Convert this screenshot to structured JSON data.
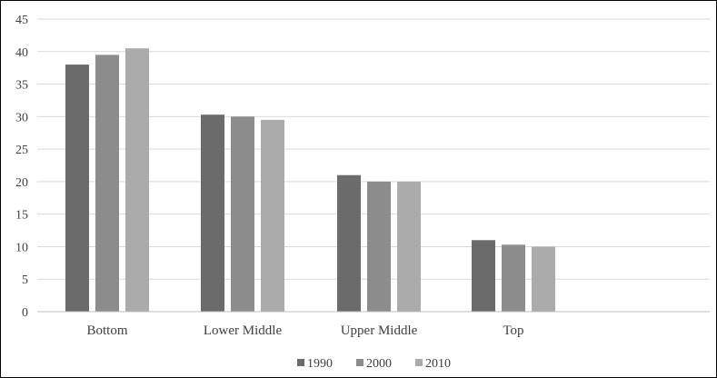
{
  "chart_data": {
    "type": "bar",
    "title": "",
    "xlabel": "",
    "ylabel": "",
    "categories": [
      "Bottom",
      "Lower Middle",
      "Upper Middle",
      "Top"
    ],
    "series": [
      {
        "name": "1990",
        "color": "#6b6b6b",
        "values": [
          38.0,
          30.3,
          21.0,
          11.0
        ]
      },
      {
        "name": "2000",
        "color": "#8c8c8c",
        "values": [
          39.5,
          30.0,
          20.0,
          10.3
        ]
      },
      {
        "name": "2010",
        "color": "#ababab",
        "values": [
          40.5,
          29.5,
          20.0,
          10.0
        ]
      }
    ],
    "ylim": [
      0,
      45
    ],
    "yticks": [
      0,
      5,
      10,
      15,
      20,
      25,
      30,
      35,
      40,
      45
    ],
    "grid": true,
    "legend": "bottom-center"
  }
}
